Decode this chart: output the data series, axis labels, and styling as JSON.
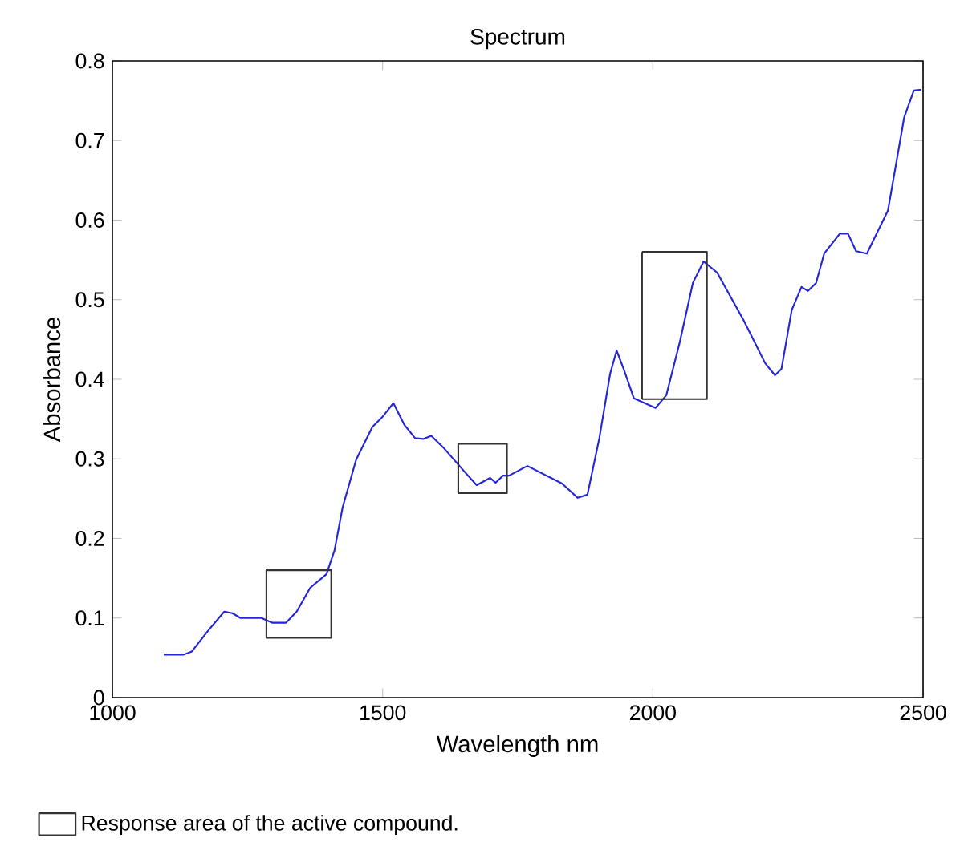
{
  "chart_data": {
    "type": "line",
    "title": "Spectrum",
    "xlabel": "Wavelength nm",
    "ylabel": "Absorbance",
    "xlim": [
      1000,
      2500
    ],
    "xticks": [
      1000,
      1500,
      2000,
      2500
    ],
    "ylim": [
      0,
      0.8
    ],
    "yticks": [
      0,
      0.1,
      0.2,
      0.3,
      0.4,
      0.5,
      0.6,
      0.7,
      0.8
    ],
    "grid": false,
    "legend": "bottom left",
    "marker": "none",
    "line_style": "solid",
    "series": [
      {
        "color": "#2525d8",
        "x": [
          1095,
          1132,
          1147,
          1177,
          1207,
          1222,
          1237,
          1276,
          1296,
          1321,
          1341,
          1366,
          1396,
          1411,
          1426,
          1451,
          1481,
          1500,
          1520,
          1540,
          1560,
          1575,
          1590,
          1614,
          1654,
          1674,
          1699,
          1709,
          1723,
          1734,
          1762,
          1768,
          1832,
          1861,
          1879,
          1901,
          1921,
          1933,
          1946,
          1965,
          2005,
          2025,
          2050,
          2074,
          2094,
          2119,
          2168,
          2208,
          2226,
          2238,
          2257,
          2275,
          2287,
          2302,
          2317,
          2346,
          2361,
          2376,
          2396,
          2435,
          2465,
          2483,
          2497
        ],
        "values": [
          0.054,
          0.054,
          0.058,
          0.084,
          0.108,
          0.106,
          0.1,
          0.1,
          0.094,
          0.094,
          0.108,
          0.138,
          0.155,
          0.185,
          0.239,
          0.299,
          0.34,
          0.353,
          0.37,
          0.343,
          0.326,
          0.325,
          0.329,
          0.313,
          0.282,
          0.267,
          0.276,
          0.27,
          0.279,
          0.279,
          0.289,
          0.291,
          0.269,
          0.251,
          0.255,
          0.326,
          0.407,
          0.436,
          0.413,
          0.376,
          0.364,
          0.38,
          0.447,
          0.521,
          0.548,
          0.534,
          0.474,
          0.42,
          0.405,
          0.413,
          0.487,
          0.516,
          0.511,
          0.521,
          0.558,
          0.583,
          0.583,
          0.561,
          0.558,
          0.612,
          0.729,
          0.763,
          0.764
        ]
      },
      {
        "name": "Response area of the active compound.",
        "color": "#333333",
        "x": [
          1285,
          1405,
          1405,
          1285,
          null,
          1285,
          1285
        ],
        "values": [
          0.075,
          0.075,
          0.16,
          0.16,
          null,
          0.16,
          0.075
        ]
      },
      {
        "color": "#333333",
        "x": [
          1640,
          1730,
          1730,
          1640,
          null,
          1640,
          1640
        ],
        "values": [
          0.257,
          0.257,
          0.319,
          0.319,
          null,
          0.319,
          0.257
        ]
      },
      {
        "color": "#333333",
        "x": [
          1980,
          2100,
          2100,
          1980,
          null,
          1980,
          1980
        ],
        "values": [
          0.375,
          0.375,
          0.56,
          0.56,
          null,
          0.56,
          0.375
        ]
      }
    ]
  }
}
